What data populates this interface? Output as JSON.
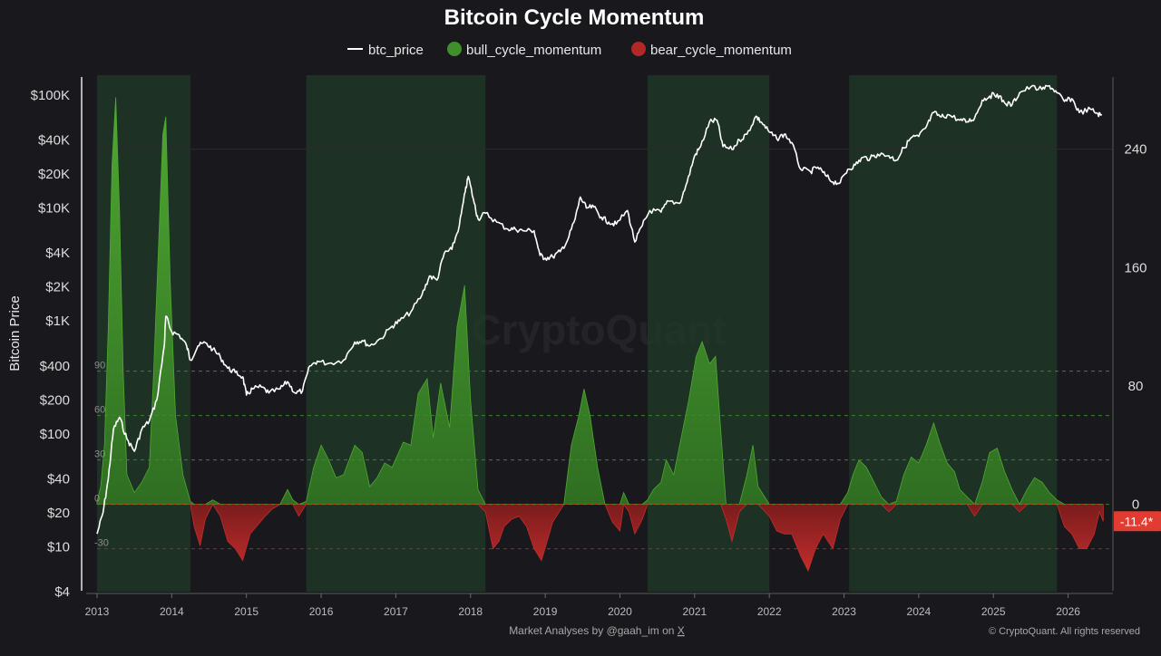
{
  "title": "Bitcoin Cycle Momentum",
  "legend": [
    {
      "name": "btc_price",
      "color": "#ffffff",
      "marker": "line"
    },
    {
      "name": "bull_cycle_momentum",
      "color": "#3f8f2a",
      "marker": "dot"
    },
    {
      "name": "bear_cycle_momentum",
      "color": "#b32727",
      "marker": "dot"
    }
  ],
  "y_left_label": "Bitcoin Price",
  "watermark": "CryptoQuant",
  "footer_left_prefix": "Market Analyses by @gaah_im on ",
  "footer_left_link": "X",
  "footer_right": "© CryptoQuant. All rights reserved",
  "last_value_label": "-11.4*",
  "colors": {
    "background": "#19191d",
    "bull": "#3f8f2a",
    "bear": "#b32727",
    "price": "#ffffff",
    "bull_band": "#1f3a27",
    "badge": "#e23b32"
  },
  "chart_data": {
    "type": "area",
    "x_axis": {
      "ticks": [
        "2013",
        "2014",
        "2015",
        "2016",
        "2017",
        "2018",
        "2019",
        "2020",
        "2021",
        "2022",
        "2023",
        "2024",
        "2025",
        "2026"
      ],
      "range": [
        2013.0,
        2026.6
      ]
    },
    "y_left": {
      "label": "Bitcoin Price",
      "scale": "log",
      "ticks": [
        "$4",
        "$10",
        "$20",
        "$40",
        "$100",
        "$200",
        "$400",
        "$1K",
        "$2K",
        "$4K",
        "$10K",
        "$20K",
        "$40K",
        "$100K"
      ],
      "range": [
        4,
        150000
      ]
    },
    "y_right": {
      "ticks": [
        "0",
        "80",
        "160",
        "240"
      ],
      "range": [
        -59,
        290
      ]
    },
    "reference_lines": [
      {
        "label": "90",
        "value": 90,
        "color": "#3f8f2a"
      },
      {
        "label": "60",
        "value": 60,
        "color": "#3f8f2a"
      },
      {
        "label": "30",
        "value": 30,
        "color": "#3f8f2a"
      },
      {
        "label": "0",
        "value": 0,
        "color": "#3f8f2a"
      },
      {
        "label": "-30",
        "value": -30,
        "color": "#b32727"
      }
    ],
    "bull_cycle_bands": [
      [
        2013.0,
        2014.25
      ],
      [
        2015.8,
        2018.2
      ],
      [
        2020.37,
        2022.0
      ],
      [
        2023.07,
        2025.85
      ]
    ],
    "series": [
      {
        "name": "btc_price",
        "points": [
          [
            2013.0,
            13
          ],
          [
            2013.08,
            20
          ],
          [
            2013.15,
            40
          ],
          [
            2013.22,
            110
          ],
          [
            2013.3,
            140
          ],
          [
            2013.4,
            90
          ],
          [
            2013.5,
            70
          ],
          [
            2013.6,
            110
          ],
          [
            2013.7,
            130
          ],
          [
            2013.8,
            200
          ],
          [
            2013.9,
            600
          ],
          [
            2013.92,
            1100
          ],
          [
            2014.0,
            800
          ],
          [
            2014.1,
            750
          ],
          [
            2014.2,
            600
          ],
          [
            2014.25,
            450
          ],
          [
            2014.35,
            600
          ],
          [
            2014.45,
            640
          ],
          [
            2014.55,
            560
          ],
          [
            2014.65,
            480
          ],
          [
            2014.75,
            380
          ],
          [
            2014.85,
            350
          ],
          [
            2014.95,
            320
          ],
          [
            2015.0,
            220
          ],
          [
            2015.08,
            250
          ],
          [
            2015.2,
            260
          ],
          [
            2015.3,
            230
          ],
          [
            2015.45,
            250
          ],
          [
            2015.55,
            290
          ],
          [
            2015.65,
            230
          ],
          [
            2015.75,
            240
          ],
          [
            2015.85,
            400
          ],
          [
            2015.95,
            440
          ],
          [
            2016.1,
            420
          ],
          [
            2016.3,
            450
          ],
          [
            2016.45,
            650
          ],
          [
            2016.55,
            670
          ],
          [
            2016.65,
            600
          ],
          [
            2016.8,
            700
          ],
          [
            2016.95,
            900
          ],
          [
            2017.05,
            1000
          ],
          [
            2017.2,
            1200
          ],
          [
            2017.35,
            1700
          ],
          [
            2017.45,
            2500
          ],
          [
            2017.55,
            2300
          ],
          [
            2017.65,
            4000
          ],
          [
            2017.75,
            4300
          ],
          [
            2017.85,
            7000
          ],
          [
            2017.93,
            14000
          ],
          [
            2017.97,
            19000
          ],
          [
            2018.05,
            11000
          ],
          [
            2018.1,
            8000
          ],
          [
            2018.2,
            9000
          ],
          [
            2018.35,
            7500
          ],
          [
            2018.5,
            6500
          ],
          [
            2018.6,
            6500
          ],
          [
            2018.7,
            6300
          ],
          [
            2018.85,
            6300
          ],
          [
            2018.93,
            3800
          ],
          [
            2019.0,
            3600
          ],
          [
            2019.1,
            3700
          ],
          [
            2019.2,
            4100
          ],
          [
            2019.3,
            5200
          ],
          [
            2019.4,
            8000
          ],
          [
            2019.47,
            12500
          ],
          [
            2019.55,
            10000
          ],
          [
            2019.65,
            10200
          ],
          [
            2019.75,
            8300
          ],
          [
            2019.85,
            7500
          ],
          [
            2019.95,
            7200
          ],
          [
            2020.1,
            9500
          ],
          [
            2020.2,
            5000
          ],
          [
            2020.3,
            7000
          ],
          [
            2020.4,
            9500
          ],
          [
            2020.55,
            9200
          ],
          [
            2020.65,
            11500
          ],
          [
            2020.8,
            11000
          ],
          [
            2020.9,
            17000
          ],
          [
            2021.0,
            29000
          ],
          [
            2021.08,
            35000
          ],
          [
            2021.2,
            58000
          ],
          [
            2021.3,
            60000
          ],
          [
            2021.38,
            35000
          ],
          [
            2021.5,
            33000
          ],
          [
            2021.6,
            40000
          ],
          [
            2021.7,
            45000
          ],
          [
            2021.82,
            65000
          ],
          [
            2021.9,
            57000
          ],
          [
            2022.0,
            47000
          ],
          [
            2022.1,
            41000
          ],
          [
            2022.2,
            45000
          ],
          [
            2022.3,
            38000
          ],
          [
            2022.42,
            22000
          ],
          [
            2022.55,
            21000
          ],
          [
            2022.65,
            23000
          ],
          [
            2022.75,
            19500
          ],
          [
            2022.85,
            17000
          ],
          [
            2022.95,
            16800
          ],
          [
            2023.05,
            22000
          ],
          [
            2023.15,
            24000
          ],
          [
            2023.25,
            28000
          ],
          [
            2023.35,
            27500
          ],
          [
            2023.45,
            30000
          ],
          [
            2023.6,
            29000
          ],
          [
            2023.7,
            26500
          ],
          [
            2023.8,
            34000
          ],
          [
            2023.9,
            42000
          ],
          [
            2024.0,
            43000
          ],
          [
            2024.1,
            52000
          ],
          [
            2024.2,
            70000
          ],
          [
            2024.3,
            64000
          ],
          [
            2024.4,
            67000
          ],
          [
            2024.55,
            60000
          ],
          [
            2024.65,
            58000
          ],
          [
            2024.75,
            63000
          ],
          [
            2024.85,
            90000
          ],
          [
            2024.95,
            98000
          ],
          [
            2025.05,
            102000
          ],
          [
            2025.15,
            85000
          ],
          [
            2025.25,
            82000
          ],
          [
            2025.35,
            105000
          ],
          [
            2025.5,
            118000
          ],
          [
            2025.65,
            112000
          ],
          [
            2025.75,
            121000
          ],
          [
            2025.85,
            105000
          ],
          [
            2025.95,
            88000
          ],
          [
            2026.05,
            93000
          ],
          [
            2026.15,
            70000
          ],
          [
            2026.3,
            75000
          ],
          [
            2026.4,
            68000
          ],
          [
            2026.45,
            66000
          ]
        ]
      },
      {
        "name": "cycle_momentum",
        "points": [
          [
            2013.0,
            2
          ],
          [
            2013.05,
            12
          ],
          [
            2013.1,
            40
          ],
          [
            2013.15,
            120
          ],
          [
            2013.2,
            230
          ],
          [
            2013.25,
            275
          ],
          [
            2013.3,
            200
          ],
          [
            2013.35,
            90
          ],
          [
            2013.4,
            20
          ],
          [
            2013.5,
            8
          ],
          [
            2013.6,
            15
          ],
          [
            2013.7,
            25
          ],
          [
            2013.75,
            80
          ],
          [
            2013.82,
            170
          ],
          [
            2013.88,
            250
          ],
          [
            2013.92,
            262
          ],
          [
            2013.98,
            150
          ],
          [
            2014.05,
            60
          ],
          [
            2014.15,
            20
          ],
          [
            2014.25,
            2
          ],
          [
            2014.3,
            -15
          ],
          [
            2014.38,
            -28
          ],
          [
            2014.45,
            -10
          ],
          [
            2014.55,
            3
          ],
          [
            2014.65,
            -8
          ],
          [
            2014.75,
            -25
          ],
          [
            2014.85,
            -30
          ],
          [
            2014.95,
            -38
          ],
          [
            2015.05,
            -20
          ],
          [
            2015.15,
            -14
          ],
          [
            2015.25,
            -8
          ],
          [
            2015.35,
            -3
          ],
          [
            2015.45,
            0
          ],
          [
            2015.55,
            10
          ],
          [
            2015.62,
            3
          ],
          [
            2015.7,
            -8
          ],
          [
            2015.8,
            2
          ],
          [
            2015.9,
            25
          ],
          [
            2016.0,
            40
          ],
          [
            2016.1,
            30
          ],
          [
            2016.2,
            18
          ],
          [
            2016.3,
            20
          ],
          [
            2016.45,
            40
          ],
          [
            2016.55,
            35
          ],
          [
            2016.65,
            12
          ],
          [
            2016.75,
            18
          ],
          [
            2016.85,
            28
          ],
          [
            2016.95,
            25
          ],
          [
            2017.1,
            42
          ],
          [
            2017.2,
            40
          ],
          [
            2017.3,
            75
          ],
          [
            2017.42,
            85
          ],
          [
            2017.5,
            45
          ],
          [
            2017.6,
            82
          ],
          [
            2017.72,
            52
          ],
          [
            2017.82,
            120
          ],
          [
            2017.92,
            148
          ],
          [
            2018.0,
            70
          ],
          [
            2018.1,
            10
          ],
          [
            2018.2,
            -5
          ],
          [
            2018.3,
            -30
          ],
          [
            2018.38,
            -25
          ],
          [
            2018.45,
            -15
          ],
          [
            2018.55,
            -10
          ],
          [
            2018.65,
            -8
          ],
          [
            2018.75,
            -15
          ],
          [
            2018.85,
            -30
          ],
          [
            2018.95,
            -38
          ],
          [
            2019.1,
            -12
          ],
          [
            2019.25,
            0
          ],
          [
            2019.35,
            40
          ],
          [
            2019.45,
            60
          ],
          [
            2019.52,
            78
          ],
          [
            2019.6,
            60
          ],
          [
            2019.7,
            25
          ],
          [
            2019.8,
            0
          ],
          [
            2019.9,
            -12
          ],
          [
            2020.0,
            -18
          ],
          [
            2020.05,
            8
          ],
          [
            2020.12,
            -5
          ],
          [
            2020.2,
            -20
          ],
          [
            2020.3,
            -10
          ],
          [
            2020.37,
            3
          ],
          [
            2020.45,
            10
          ],
          [
            2020.55,
            15
          ],
          [
            2020.62,
            30
          ],
          [
            2020.72,
            20
          ],
          [
            2020.82,
            45
          ],
          [
            2020.92,
            70
          ],
          [
            2021.02,
            100
          ],
          [
            2021.1,
            110
          ],
          [
            2021.2,
            95
          ],
          [
            2021.28,
            100
          ],
          [
            2021.35,
            50
          ],
          [
            2021.42,
            -10
          ],
          [
            2021.5,
            -25
          ],
          [
            2021.6,
            -5
          ],
          [
            2021.7,
            20
          ],
          [
            2021.78,
            40
          ],
          [
            2021.85,
            12
          ],
          [
            2022.0,
            -8
          ],
          [
            2022.1,
            -18
          ],
          [
            2022.2,
            -20
          ],
          [
            2022.3,
            -20
          ],
          [
            2022.42,
            -35
          ],
          [
            2022.52,
            -45
          ],
          [
            2022.62,
            -30
          ],
          [
            2022.72,
            -20
          ],
          [
            2022.85,
            -30
          ],
          [
            2022.95,
            -10
          ],
          [
            2023.05,
            8
          ],
          [
            2023.12,
            20
          ],
          [
            2023.2,
            30
          ],
          [
            2023.3,
            25
          ],
          [
            2023.4,
            15
          ],
          [
            2023.5,
            5
          ],
          [
            2023.6,
            -5
          ],
          [
            2023.7,
            2
          ],
          [
            2023.8,
            20
          ],
          [
            2023.9,
            32
          ],
          [
            2024.0,
            28
          ],
          [
            2024.1,
            40
          ],
          [
            2024.2,
            55
          ],
          [
            2024.28,
            42
          ],
          [
            2024.38,
            28
          ],
          [
            2024.48,
            22
          ],
          [
            2024.55,
            10
          ],
          [
            2024.65,
            5
          ],
          [
            2024.75,
            -8
          ],
          [
            2024.85,
            15
          ],
          [
            2024.95,
            35
          ],
          [
            2025.05,
            38
          ],
          [
            2025.15,
            22
          ],
          [
            2025.25,
            10
          ],
          [
            2025.35,
            -5
          ],
          [
            2025.45,
            10
          ],
          [
            2025.55,
            18
          ],
          [
            2025.65,
            15
          ],
          [
            2025.75,
            8
          ],
          [
            2025.85,
            3
          ],
          [
            2025.95,
            -15
          ],
          [
            2026.05,
            -20
          ],
          [
            2026.15,
            -30
          ],
          [
            2026.25,
            -30
          ],
          [
            2026.35,
            -20
          ],
          [
            2026.42,
            -5
          ],
          [
            2026.47,
            -11.4
          ]
        ]
      }
    ]
  }
}
